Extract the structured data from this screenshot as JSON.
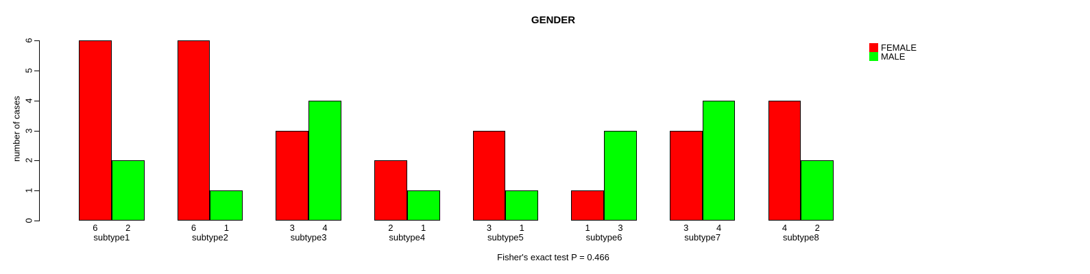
{
  "title": "GENDER",
  "legend": {
    "position": "top-right",
    "items": [
      {
        "label": "FEMALE",
        "color": "#ff0000"
      },
      {
        "label": "MALE",
        "color": "#00ff00"
      }
    ]
  },
  "chart_data": {
    "type": "bar",
    "title": "GENDER",
    "categories": [
      "subtype1",
      "subtype2",
      "subtype3",
      "subtype4",
      "subtype5",
      "subtype6",
      "subtype7",
      "subtype8"
    ],
    "series": [
      {
        "name": "FEMALE",
        "color": "#ff0000",
        "values": [
          6,
          6,
          3,
          2,
          3,
          1,
          3,
          4
        ]
      },
      {
        "name": "MALE",
        "color": "#00ff00",
        "values": [
          2,
          1,
          4,
          1,
          1,
          3,
          4,
          2
        ]
      }
    ],
    "xlabel": "",
    "ylabel": "number of cases",
    "ylim": [
      0,
      6
    ],
    "yticks": [
      0,
      1,
      2,
      3,
      4,
      5,
      6
    ],
    "bar_value_labels": true,
    "grid": false,
    "legend_position": "top-right",
    "annotation": "Fisher's exact test P = 0.466"
  }
}
